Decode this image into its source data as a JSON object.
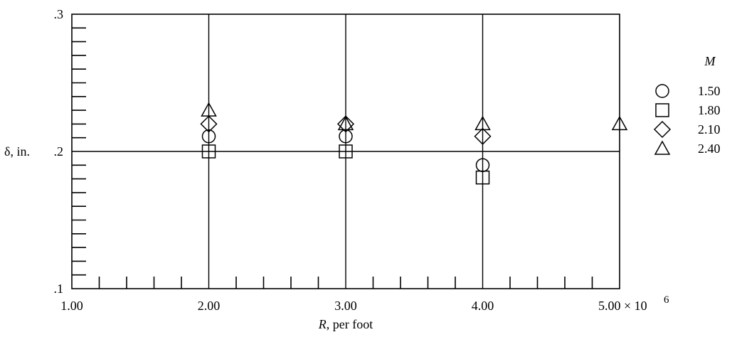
{
  "chart_data": {
    "type": "scatter",
    "x_ticks": [
      {
        "value": 1.0,
        "label": "1.00"
      },
      {
        "value": 2.0,
        "label": "2.00"
      },
      {
        "value": 3.0,
        "label": "3.00"
      },
      {
        "value": 4.0,
        "label": "4.00"
      },
      {
        "value": 5.0,
        "label": "5.00 × 10"
      }
    ],
    "x_exponent": "6",
    "y_ticks": [
      {
        "value": 0.1,
        "label": ".1"
      },
      {
        "value": 0.2,
        "label": ".2"
      },
      {
        "value": 0.3,
        "label": ".3"
      }
    ],
    "xlabel_italic": "R",
    "xlabel_rest": ", per foot",
    "ylabel": "δ, in.",
    "legend_title": "M",
    "xlim": [
      1.0,
      5.0
    ],
    "ylim": [
      0.1,
      0.3
    ],
    "grid": true,
    "legend_position": "right",
    "series": [
      {
        "name": "1.50",
        "marker": "circle",
        "x": [
          2.0,
          3.0,
          4.0
        ],
        "y": [
          0.211,
          0.211,
          0.19
        ]
      },
      {
        "name": "1.80",
        "marker": "square",
        "x": [
          2.0,
          3.0,
          4.0
        ],
        "y": [
          0.2,
          0.2,
          0.181
        ]
      },
      {
        "name": "2.10",
        "marker": "diamond",
        "x": [
          2.0,
          3.0,
          4.0
        ],
        "y": [
          0.22,
          0.22,
          0.211
        ]
      },
      {
        "name": "2.40",
        "marker": "triangle",
        "x": [
          2.0,
          3.0,
          4.0,
          5.0
        ],
        "y": [
          0.23,
          0.22,
          0.22,
          0.22
        ]
      }
    ]
  }
}
